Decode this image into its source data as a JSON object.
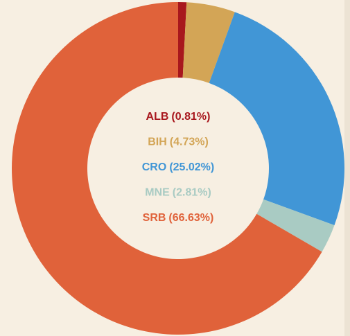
{
  "chart_data": {
    "type": "donut",
    "categories": [
      "ALB",
      "BIH",
      "CRO",
      "MNE",
      "SRB"
    ],
    "values": [
      0.81,
      4.73,
      25.02,
      2.81,
      66.63
    ],
    "value_labels": [
      "(0.81%)",
      "(4.73%)",
      "(25.02%)",
      "(2.81%)",
      "(66.63%)"
    ],
    "colors": [
      "#a8171d",
      "#d3a556",
      "#4196d6",
      "#a9cbc3",
      "#e0623a"
    ]
  }
}
